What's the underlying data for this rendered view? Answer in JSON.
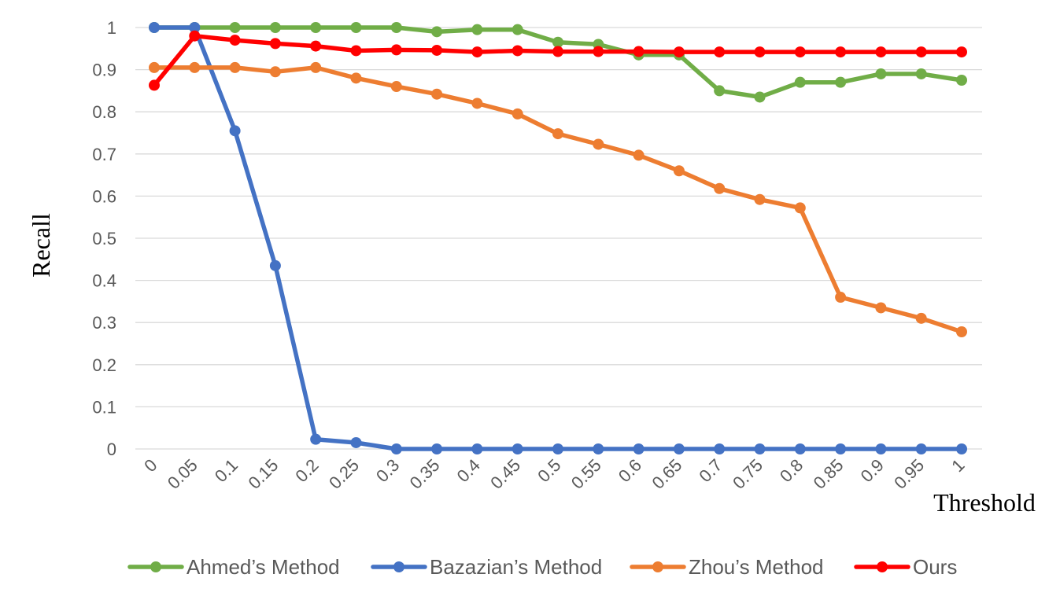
{
  "chart_data": {
    "type": "line",
    "title": "",
    "xlabel": "Threshold",
    "ylabel": "Recall",
    "x": [
      "0",
      "0.05",
      "0.1",
      "0.15",
      "0.2",
      "0.25",
      "0.3",
      "0.35",
      "0.4",
      "0.45",
      "0.5",
      "0.55",
      "0.6",
      "0.65",
      "0.7",
      "0.75",
      "0.8",
      "0.85",
      "0.9",
      "0.95",
      "1"
    ],
    "ylim": [
      0,
      1
    ],
    "yticks": [
      "0",
      "0.1",
      "0.2",
      "0.3",
      "0.4",
      "0.5",
      "0.6",
      "0.7",
      "0.8",
      "0.9",
      "1"
    ],
    "grid": true,
    "legend_position": "bottom",
    "series": [
      {
        "name": "Ahmed’s Method",
        "color": "#70ad47",
        "values": [
          1.0,
          1.0,
          1.0,
          1.0,
          1.0,
          1.0,
          1.0,
          0.99,
          0.995,
          0.995,
          0.965,
          0.96,
          0.935,
          0.935,
          0.85,
          0.835,
          0.87,
          0.87,
          0.89,
          0.89,
          0.875
        ]
      },
      {
        "name": "Bazazian’s Method",
        "color": "#4472c4",
        "values": [
          1.0,
          1.0,
          0.755,
          0.435,
          0.023,
          0.015,
          0.0,
          0.0,
          0.0,
          0.0,
          0.0,
          0.0,
          0.0,
          0.0,
          0.0,
          0.0,
          0.0,
          0.0,
          0.0,
          0.0,
          0.0
        ]
      },
      {
        "name": "Zhou’s Method",
        "color": "#ed7d31",
        "values": [
          0.905,
          0.905,
          0.905,
          0.895,
          0.905,
          0.88,
          0.86,
          0.842,
          0.82,
          0.795,
          0.748,
          0.723,
          0.697,
          0.66,
          0.618,
          0.592,
          0.572,
          0.36,
          0.335,
          0.31,
          0.278
        ]
      },
      {
        "name": "Ours",
        "color": "#ff0000",
        "values": [
          0.863,
          0.98,
          0.97,
          0.962,
          0.956,
          0.945,
          0.947,
          0.946,
          0.942,
          0.945,
          0.943,
          0.943,
          0.943,
          0.942,
          0.942,
          0.942,
          0.942,
          0.942,
          0.942,
          0.942,
          0.942
        ]
      }
    ]
  }
}
